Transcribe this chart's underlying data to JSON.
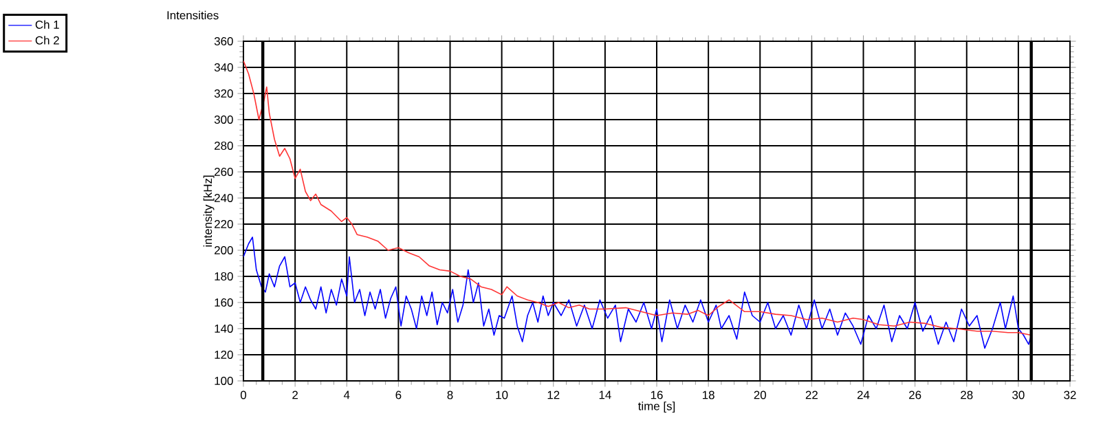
{
  "chart_data": {
    "type": "line",
    "title": "Intensities",
    "xlabel": "time [s]",
    "ylabel": "intensity [kHz]",
    "xlim": [
      0,
      32
    ],
    "ylim": [
      100,
      360
    ],
    "xticks": [
      0,
      2,
      4,
      6,
      8,
      10,
      12,
      14,
      16,
      18,
      20,
      22,
      24,
      26,
      28,
      30,
      32
    ],
    "yticks": [
      100,
      120,
      140,
      160,
      180,
      200,
      220,
      240,
      260,
      280,
      300,
      320,
      340,
      360
    ],
    "grid": true,
    "legend": "top left",
    "marker": "none",
    "line_style": "solid",
    "ref_lines": [
      {
        "axis": "x",
        "value": 0.75,
        "color": "#000000"
      },
      {
        "axis": "x",
        "value": 30.5,
        "color": "#000000"
      }
    ],
    "series": [
      {
        "name": "Ch 1",
        "color": "#0000ff",
        "x": [
          0,
          0.2,
          0.35,
          0.5,
          0.7,
          0.85,
          1.0,
          1.2,
          1.4,
          1.6,
          1.8,
          2.0,
          2.2,
          2.4,
          2.6,
          2.8,
          3.0,
          3.2,
          3.4,
          3.6,
          3.8,
          4.0,
          4.1,
          4.3,
          4.5,
          4.7,
          4.9,
          5.1,
          5.3,
          5.5,
          5.7,
          5.9,
          6.1,
          6.3,
          6.5,
          6.7,
          6.9,
          7.1,
          7.3,
          7.5,
          7.7,
          7.9,
          8.1,
          8.3,
          8.5,
          8.7,
          8.9,
          9.1,
          9.3,
          9.5,
          9.7,
          9.9,
          10.1,
          10.4,
          10.6,
          10.8,
          11.0,
          11.2,
          11.4,
          11.6,
          11.8,
          12.0,
          12.3,
          12.6,
          12.9,
          13.2,
          13.5,
          13.8,
          14.1,
          14.4,
          14.6,
          14.9,
          15.2,
          15.5,
          15.8,
          16.0,
          16.2,
          16.5,
          16.8,
          17.1,
          17.4,
          17.7,
          18.0,
          18.3,
          18.5,
          18.8,
          19.1,
          19.4,
          19.7,
          20.0,
          20.3,
          20.6,
          20.9,
          21.2,
          21.5,
          21.8,
          22.1,
          22.4,
          22.7,
          23.0,
          23.3,
          23.6,
          23.9,
          24.2,
          24.5,
          24.8,
          25.1,
          25.4,
          25.7,
          26.0,
          26.3,
          26.6,
          26.9,
          27.2,
          27.5,
          27.8,
          28.1,
          28.4,
          28.7,
          29.0,
          29.3,
          29.5,
          29.8,
          30.0,
          30.2,
          30.4,
          30.5
        ],
        "values": [
          195,
          205,
          210,
          185,
          172,
          168,
          182,
          172,
          188,
          195,
          172,
          175,
          160,
          172,
          162,
          155,
          172,
          152,
          170,
          158,
          178,
          165,
          195,
          160,
          170,
          150,
          168,
          155,
          170,
          148,
          163,
          172,
          142,
          165,
          155,
          140,
          165,
          150,
          168,
          143,
          160,
          152,
          170,
          145,
          158,
          185,
          160,
          175,
          142,
          155,
          135,
          150,
          148,
          165,
          142,
          130,
          150,
          160,
          145,
          165,
          150,
          160,
          150,
          162,
          142,
          158,
          140,
          162,
          148,
          158,
          130,
          155,
          145,
          160,
          140,
          155,
          130,
          162,
          140,
          158,
          145,
          162,
          145,
          158,
          140,
          150,
          132,
          168,
          150,
          145,
          160,
          140,
          150,
          135,
          158,
          140,
          162,
          140,
          155,
          135,
          152,
          142,
          128,
          150,
          140,
          158,
          130,
          150,
          140,
          160,
          138,
          150,
          128,
          145,
          130,
          155,
          142,
          150,
          125,
          140,
          160,
          140,
          165,
          140,
          135,
          128,
          135
        ]
      },
      {
        "name": "Ch 2",
        "color": "#ff3333",
        "x": [
          0,
          0.2,
          0.4,
          0.6,
          0.8,
          0.9,
          1.0,
          1.2,
          1.4,
          1.6,
          1.8,
          2.0,
          2.2,
          2.4,
          2.6,
          2.8,
          3.0,
          3.4,
          3.8,
          4.0,
          4.2,
          4.4,
          4.8,
          5.2,
          5.6,
          6.0,
          6.4,
          6.8,
          7.2,
          7.6,
          8.0,
          8.4,
          8.8,
          9.2,
          9.6,
          10.0,
          10.2,
          10.6,
          11.0,
          11.4,
          11.8,
          12.2,
          12.6,
          13.0,
          13.4,
          14.0,
          14.8,
          15.4,
          16.0,
          16.6,
          17.2,
          17.6,
          18.0,
          18.4,
          18.8,
          19.4,
          20.0,
          20.6,
          21.2,
          21.8,
          22.4,
          23.0,
          23.6,
          24.0,
          24.6,
          25.2,
          25.8,
          26.4,
          27.0,
          27.6,
          28.4,
          29.0,
          29.6,
          30.0,
          30.5
        ],
        "values": [
          345,
          335,
          320,
          300,
          315,
          325,
          305,
          285,
          272,
          278,
          270,
          255,
          262,
          245,
          238,
          243,
          235,
          230,
          222,
          225,
          220,
          212,
          210,
          207,
          200,
          202,
          198,
          195,
          188,
          185,
          184,
          180,
          178,
          172,
          170,
          166,
          172,
          165,
          162,
          160,
          157,
          160,
          156,
          158,
          155,
          155,
          156,
          153,
          150,
          152,
          151,
          154,
          150,
          157,
          162,
          153,
          153,
          151,
          150,
          147,
          148,
          145,
          148,
          147,
          143,
          142,
          145,
          144,
          141,
          140,
          138,
          138,
          137,
          137,
          135
        ]
      }
    ]
  }
}
